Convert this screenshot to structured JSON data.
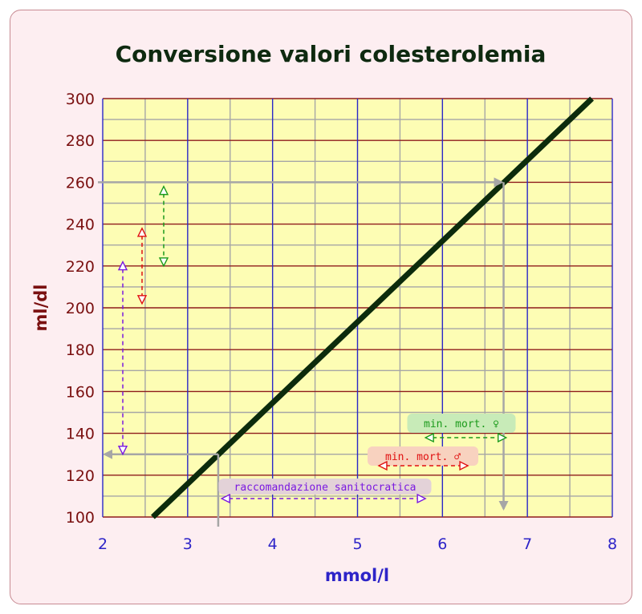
{
  "chart_data": {
    "type": "line",
    "title": "Conversione valori colesterolemia",
    "xlabel": "mmol/l",
    "ylabel": "ml/dl",
    "xlim": [
      2,
      8
    ],
    "ylim": [
      100,
      300
    ],
    "x_ticks": [
      "2",
      "3",
      "4",
      "5",
      "6",
      "7",
      "8"
    ],
    "y_ticks": [
      "100",
      "120",
      "140",
      "160",
      "180",
      "200",
      "220",
      "240",
      "260",
      "280",
      "300"
    ],
    "grid": true,
    "series": [
      {
        "x": [
          2.59,
          7.76
        ],
        "y": [
          100,
          300
        ]
      }
    ],
    "conversion_markers": [
      {
        "mmol": 3.36,
        "mgdl": 130
      },
      {
        "mmol": 6.72,
        "mgdl": 260
      }
    ],
    "annotations": [
      {
        "label": "min. mort. ♀",
        "color": "#1a9a1a",
        "bg": "#c8ebb8",
        "x_range": [
          5.8,
          6.75
        ],
        "y_range": [
          220,
          258
        ]
      },
      {
        "label": "min. mort. ♂",
        "color": "#e01010",
        "bg": "#f8d2bf",
        "x_range": [
          5.25,
          6.3
        ],
        "y_range": [
          202,
          238
        ]
      },
      {
        "label": "raccomandazione sanitocratica",
        "color": "#7a18e0",
        "bg": "#e3d2d8",
        "x_range": [
          3.4,
          5.8
        ],
        "y_range": [
          130,
          222
        ]
      }
    ],
    "colors": {
      "plot_bg": "#fdfdb4",
      "line": "#0c2b0c",
      "grid_major_x": "#2a28c8",
      "grid_minor_x": "#a6a6a6",
      "grid_major_y": "#8e1c1c",
      "grid_minor_y": "#a6a6a6",
      "pointer": "#a6a6a6"
    }
  }
}
